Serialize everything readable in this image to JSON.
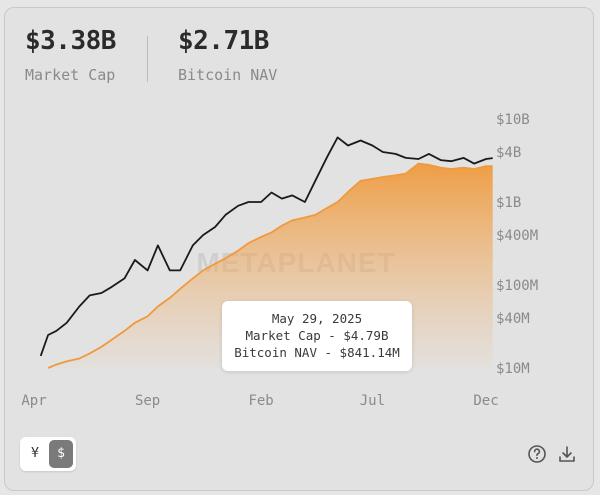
{
  "stats": {
    "market_cap_value": "$3.38B",
    "market_cap_label": "Market Cap",
    "btc_nav_value": "$2.71B",
    "btc_nav_label": "Bitcoin NAV"
  },
  "watermark": "METAPLANET",
  "tooltip": {
    "date": "May 29, 2025",
    "market_cap": "Market Cap - $4.79B",
    "bitcoin_nav": "Bitcoin NAV - $841.14M"
  },
  "currency_toggle": {
    "yen": "¥",
    "usd": "$",
    "selected": "usd"
  },
  "icons": {
    "help": "help-circle-icon",
    "download": "download-icon"
  },
  "colors": {
    "market_cap": "#1a1a1a",
    "bitcoin_nav": "#ef9a3c"
  },
  "chart_data": {
    "type": "line",
    "y_scale": "log",
    "ylim": [
      10000000,
      10000000000
    ],
    "y_ticks": [
      {
        "value": 10000000000,
        "label": "$10B"
      },
      {
        "value": 4000000000,
        "label": "$4B"
      },
      {
        "value": 1000000000,
        "label": "$1B"
      },
      {
        "value": 400000000,
        "label": "$400M"
      },
      {
        "value": 100000000,
        "label": "$100M"
      },
      {
        "value": 40000000,
        "label": "$40M"
      },
      {
        "value": 10000000,
        "label": "$10M"
      }
    ],
    "x_ticks": [
      {
        "x": "2024-04",
        "label": "Apr"
      },
      {
        "x": "2024-09",
        "label": "Sep"
      },
      {
        "x": "2025-02",
        "label": "Feb"
      },
      {
        "x": "2025-07",
        "label": "Jul"
      },
      {
        "x": "2025-12",
        "label": "Dec"
      }
    ],
    "grid": false,
    "legend": "none",
    "series": [
      {
        "name": "Market Cap",
        "x": [
          "2024-04-10",
          "2024-04-20",
          "2024-05-01",
          "2024-05-15",
          "2024-06-01",
          "2024-06-15",
          "2024-07-01",
          "2024-07-15",
          "2024-08-01",
          "2024-08-15",
          "2024-09-01",
          "2024-09-15",
          "2024-10-01",
          "2024-10-15",
          "2024-11-01",
          "2024-11-15",
          "2024-12-01",
          "2024-12-15",
          "2025-01-01",
          "2025-01-15",
          "2025-02-01",
          "2025-02-15",
          "2025-03-01",
          "2025-03-15",
          "2025-04-01",
          "2025-04-15",
          "2025-05-01",
          "2025-05-15",
          "2025-05-29",
          "2025-06-15",
          "2025-07-01",
          "2025-07-15",
          "2025-08-01",
          "2025-08-15",
          "2025-09-01",
          "2025-09-15",
          "2025-10-01",
          "2025-10-15",
          "2025-11-01",
          "2025-11-15",
          "2025-12-01",
          "2025-12-10"
        ],
        "values": [
          14000000,
          25000000,
          28000000,
          35000000,
          55000000,
          75000000,
          80000000,
          95000000,
          120000000,
          200000000,
          150000000,
          300000000,
          150000000,
          150000000,
          300000000,
          400000000,
          500000000,
          700000000,
          900000000,
          1000000000,
          1000000000,
          1300000000,
          1100000000,
          1200000000,
          1000000000,
          1800000000,
          3500000000,
          6000000000,
          4790000000,
          5500000000,
          4800000000,
          4000000000,
          3800000000,
          3400000000,
          3300000000,
          3800000000,
          3200000000,
          3100000000,
          3400000000,
          2900000000,
          3300000000,
          3380000000
        ]
      },
      {
        "name": "Bitcoin NAV",
        "x": [
          "2024-04-20",
          "2024-05-01",
          "2024-05-15",
          "2024-06-01",
          "2024-06-15",
          "2024-07-01",
          "2024-07-15",
          "2024-08-01",
          "2024-08-15",
          "2024-09-01",
          "2024-09-15",
          "2024-10-01",
          "2024-10-15",
          "2024-11-01",
          "2024-11-15",
          "2024-12-01",
          "2024-12-15",
          "2025-01-01",
          "2025-01-15",
          "2025-02-01",
          "2025-02-15",
          "2025-03-01",
          "2025-03-15",
          "2025-04-01",
          "2025-04-15",
          "2025-05-01",
          "2025-05-15",
          "2025-06-01",
          "2025-06-15",
          "2025-07-01",
          "2025-07-15",
          "2025-08-01",
          "2025-08-15",
          "2025-09-01",
          "2025-09-15",
          "2025-10-01",
          "2025-10-15",
          "2025-11-01",
          "2025-11-15",
          "2025-12-01",
          "2025-12-10"
        ],
        "values": [
          10000000,
          11000000,
          12000000,
          13000000,
          15000000,
          18000000,
          22000000,
          28000000,
          35000000,
          42000000,
          55000000,
          70000000,
          90000000,
          120000000,
          150000000,
          180000000,
          210000000,
          260000000,
          320000000,
          380000000,
          430000000,
          520000000,
          600000000,
          650000000,
          700000000,
          850000000,
          1000000000,
          1400000000,
          1800000000,
          1900000000,
          2000000000,
          2100000000,
          2200000000,
          2900000000,
          2800000000,
          2600000000,
          2500000000,
          2600000000,
          2500000000,
          2700000000,
          2710000000
        ]
      }
    ]
  }
}
